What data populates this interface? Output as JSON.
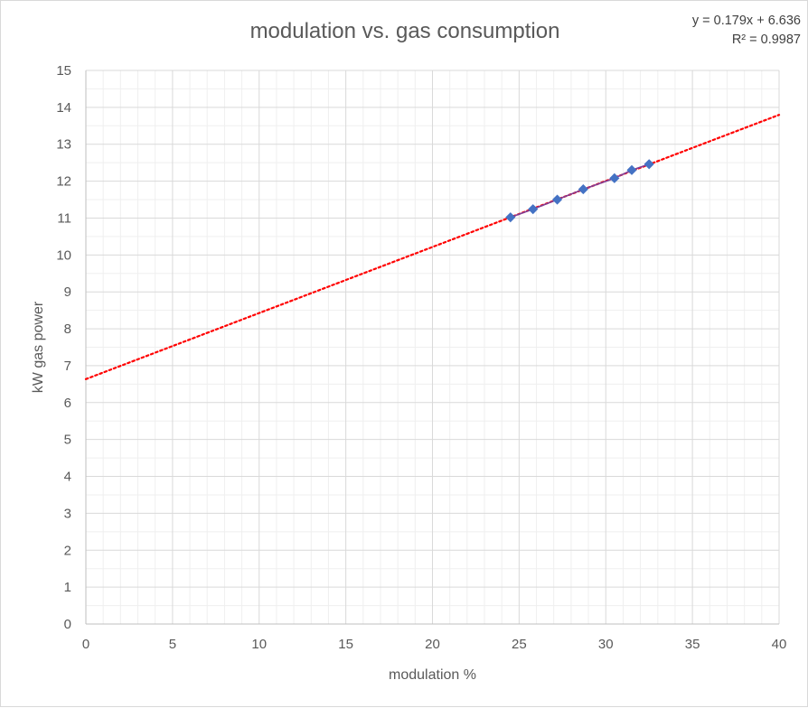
{
  "chart_data": {
    "type": "scatter",
    "title": "modulation vs. gas consumption",
    "xlabel": "modulation %",
    "ylabel": "kW gas power",
    "xlim": [
      0,
      40
    ],
    "ylim": [
      0,
      15
    ],
    "x_ticks": [
      "0",
      "5",
      "10",
      "15",
      "20",
      "25",
      "30",
      "35",
      "40"
    ],
    "y_ticks": [
      "0",
      "1",
      "2",
      "3",
      "4",
      "5",
      "6",
      "7",
      "8",
      "9",
      "10",
      "11",
      "12",
      "13",
      "14",
      "15"
    ],
    "grid": "major and minor",
    "series": [
      {
        "x": [
          24.5,
          25.8,
          27.2,
          28.7,
          30.5,
          31.5,
          32.5
        ],
        "y": [
          11.02,
          11.24,
          11.5,
          11.78,
          12.08,
          12.3,
          12.46
        ],
        "marker": "diamond",
        "marker_color": "#4472c4",
        "line_color": "#7f3f98"
      }
    ],
    "trendline": {
      "type": "linear",
      "slope": 0.179,
      "intercept": 6.636,
      "style": "dotted",
      "color": "#ff0000",
      "equation_label": "y = 0.179x + 6.636",
      "r2_label": "R² = 0.9987"
    }
  }
}
